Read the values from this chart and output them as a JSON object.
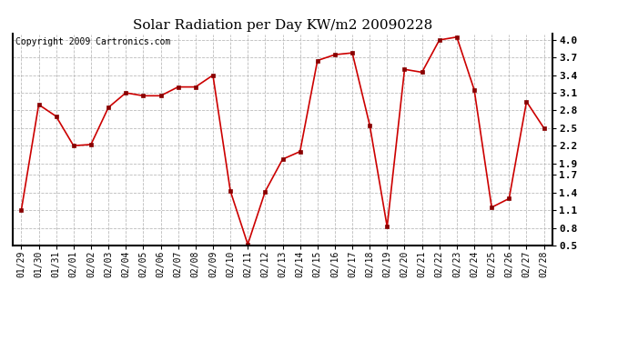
{
  "title": "Solar Radiation per Day KW/m2 20090228",
  "copyright": "Copyright 2009 Cartronics.com",
  "dates": [
    "01/29",
    "01/30",
    "01/31",
    "02/01",
    "02/02",
    "02/03",
    "02/04",
    "02/05",
    "02/06",
    "02/07",
    "02/08",
    "02/09",
    "02/10",
    "02/11",
    "02/12",
    "02/13",
    "02/14",
    "02/15",
    "02/16",
    "02/17",
    "02/18",
    "02/19",
    "02/20",
    "02/21",
    "02/22",
    "02/23",
    "02/24",
    "02/25",
    "02/26",
    "02/27",
    "02/28"
  ],
  "values": [
    1.1,
    2.9,
    2.7,
    2.2,
    2.22,
    2.85,
    3.1,
    3.05,
    3.05,
    3.2,
    3.2,
    3.4,
    1.43,
    0.52,
    1.42,
    1.97,
    2.1,
    3.65,
    3.75,
    3.78,
    2.55,
    0.82,
    3.5,
    3.45,
    4.0,
    4.05,
    3.15,
    1.15,
    1.3,
    2.95,
    2.5
  ],
  "ylim": [
    0.5,
    4.1
  ],
  "yticks": [
    0.5,
    0.8,
    1.1,
    1.4,
    1.7,
    1.9,
    2.2,
    2.5,
    2.8,
    3.1,
    3.4,
    3.7,
    4.0
  ],
  "line_color": "#cc0000",
  "marker_color": "#880000",
  "bg_color": "#ffffff",
  "grid_color": "#bbbbbb",
  "title_fontsize": 11,
  "tick_fontsize": 7,
  "copyright_fontsize": 7
}
